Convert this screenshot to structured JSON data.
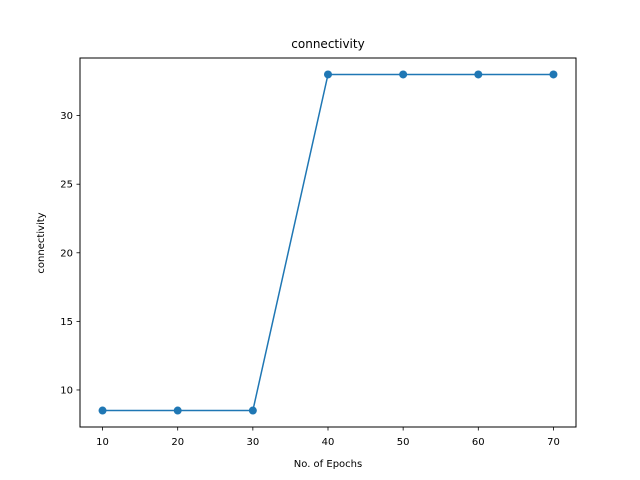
{
  "chart_data": {
    "type": "line",
    "title": "connectivity",
    "xlabel": "No. of Epochs",
    "ylabel": "connectivity",
    "x": [
      10,
      20,
      30,
      40,
      50,
      60,
      70
    ],
    "series": [
      {
        "values": [
          8.5,
          8.5,
          8.5,
          33,
          33,
          33,
          33
        ],
        "color": "#1f77b4",
        "marker": "circle"
      }
    ],
    "xlim": [
      7,
      73
    ],
    "ylim": [
      7.3,
      34.2
    ],
    "xticks": [
      10,
      20,
      30,
      40,
      50,
      60,
      70
    ],
    "yticks": [
      10,
      15,
      20,
      25,
      30
    ],
    "grid": false
  }
}
